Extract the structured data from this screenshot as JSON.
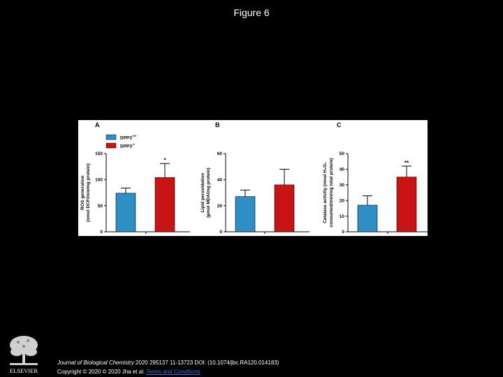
{
  "slide": {
    "title": "Figure 6"
  },
  "footer": {
    "journal": "Journal of Biological Chemistry",
    "citation": " 2020 295137 11-13723 DOI: (10.1074/jbc.RA120.014183)",
    "copyright": "Copyright © 2020 © 2020 Jha et al.",
    "link_text": "Terms and Conditions"
  },
  "logo": {
    "text": "ELSEVIER"
  },
  "colors": {
    "wt": "#2e8fc4",
    "ko": "#c81414",
    "axis": "#000000",
    "background": "#ffffff"
  },
  "legend": {
    "entries": [
      {
        "base": "DPP3",
        "sup": "+/+",
        "color": "#2e8fc4"
      },
      {
        "base": "DPP3",
        "sup": "-/-",
        "color": "#c81414"
      }
    ]
  },
  "chart_data": [
    {
      "type": "bar",
      "panel_label": "A",
      "ylabel_lines": [
        "ROS generation",
        "(nmol DCF/min/mg protein)"
      ],
      "categories": [
        "DPP3+/+",
        "DPP3-/-"
      ],
      "values": [
        74,
        104
      ],
      "errors": [
        10,
        27
      ],
      "significance": [
        "",
        "*"
      ],
      "ylim": [
        0,
        150
      ],
      "yticks": [
        0,
        50,
        100,
        150
      ]
    },
    {
      "type": "bar",
      "panel_label": "B",
      "ylabel_lines": [
        "Lipid peroxidation",
        "(µmol MDA/mg protein)"
      ],
      "categories": [
        "DPP3+/+",
        "DPP3-/-"
      ],
      "values": [
        27,
        36
      ],
      "errors": [
        5,
        12
      ],
      "significance": [
        "",
        ""
      ],
      "ylim": [
        0,
        60
      ],
      "yticks": [
        0,
        20,
        40,
        60
      ]
    },
    {
      "type": "bar",
      "panel_label": "C",
      "ylabel_lines": [
        "Catalase activity (nmol H₂O₂",
        "consumed/min/mg total protein)"
      ],
      "categories": [
        "DPP3+/+",
        "DPP3-/-"
      ],
      "values": [
        17,
        35
      ],
      "errors": [
        6,
        7
      ],
      "significance": [
        "",
        "**"
      ],
      "ylim": [
        0,
        50
      ],
      "yticks": [
        0,
        10,
        20,
        30,
        40,
        50
      ]
    }
  ]
}
